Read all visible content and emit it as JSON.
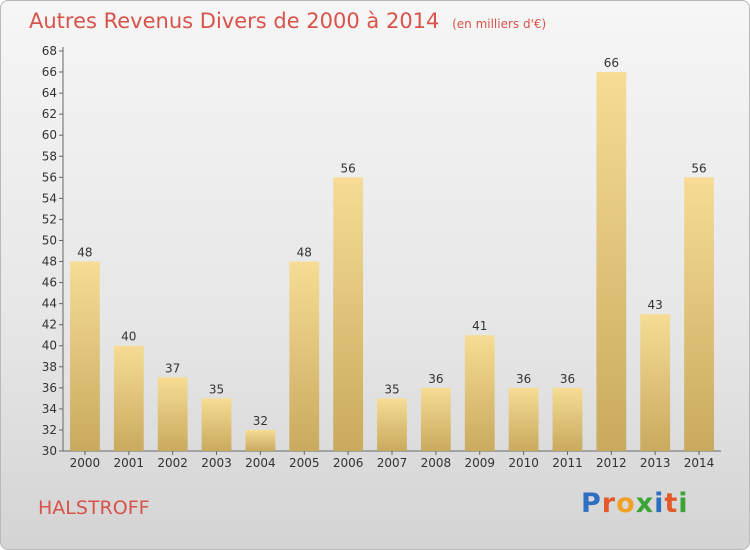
{
  "header": {
    "title": "Autres Revenus Divers de 2000 à 2014",
    "unit": "(en milliers d'€)"
  },
  "footer": {
    "commune": "HALSTROFF",
    "logo_letters": [
      "P",
      "r",
      "o",
      "x",
      "i",
      "t",
      "i"
    ],
    "logo_colors": [
      "#2f6fc2",
      "#e2592a",
      "#f0a022",
      "#3aa535",
      "#2f6fc2",
      "#e2592a",
      "#3aa535"
    ]
  },
  "chart_data": {
    "type": "bar",
    "categories": [
      "2000",
      "2001",
      "2002",
      "2003",
      "2004",
      "2005",
      "2006",
      "2007",
      "2008",
      "2009",
      "2010",
      "2011",
      "2012",
      "2013",
      "2014"
    ],
    "values": [
      48,
      40,
      37,
      35,
      32,
      48,
      56,
      35,
      36,
      41,
      36,
      36,
      66,
      43,
      56
    ],
    "ylim": [
      30,
      68
    ],
    "ytick_step": 2,
    "grid": false,
    "data_labels": true,
    "bar_color_top": "#f6dc94",
    "bar_color_bottom": "#c9aa5f"
  }
}
